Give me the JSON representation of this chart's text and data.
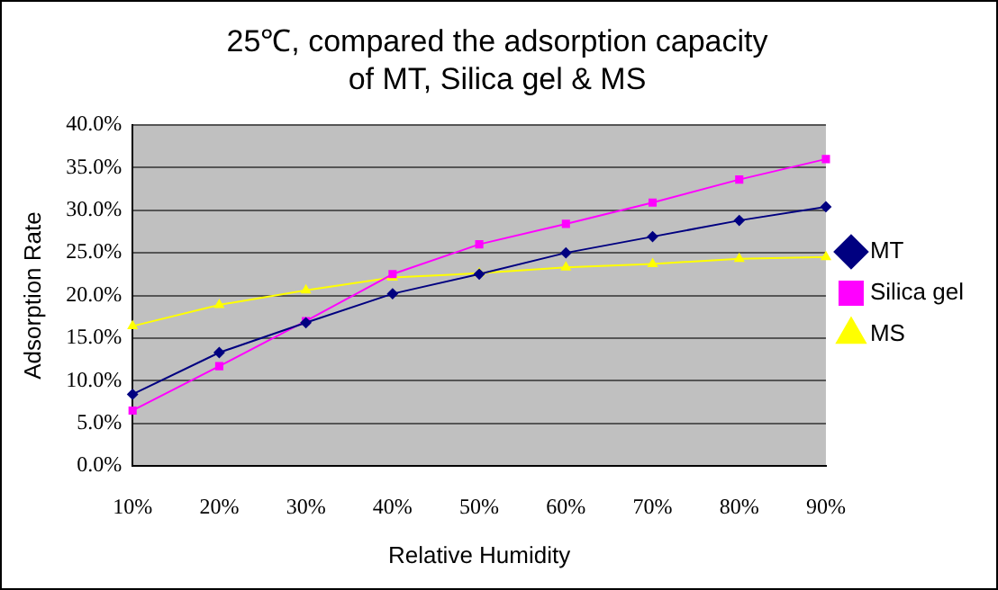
{
  "chart_data": {
    "type": "line",
    "title": "25℃, compared the adsorption capacity of MT, Silica gel & MS",
    "xlabel": "Relative Humidity",
    "ylabel": "Adsorption Rate",
    "categories": [
      "10%",
      "20%",
      "30%",
      "40%",
      "50%",
      "60%",
      "70%",
      "80%",
      "90%"
    ],
    "series": [
      {
        "name": "MT",
        "color": "#000080",
        "marker": "diamond",
        "values": [
          8.4,
          13.3,
          16.8,
          20.2,
          22.5,
          25.0,
          26.9,
          28.8,
          30.4
        ]
      },
      {
        "name": "Silica gel",
        "color": "#ff00ff",
        "marker": "square",
        "values": [
          6.5,
          11.7,
          17.0,
          22.5,
          26.0,
          28.4,
          30.9,
          33.6,
          36.0
        ]
      },
      {
        "name": "MS",
        "color": "#ffff00",
        "marker": "triangle",
        "values": [
          16.4,
          18.9,
          20.6,
          22.1,
          22.6,
          23.3,
          23.7,
          24.3,
          24.5
        ]
      }
    ],
    "ylim": [
      0,
      40
    ],
    "yticks": [
      {
        "value": 0,
        "label": "0.0%"
      },
      {
        "value": 5,
        "label": "5.0%"
      },
      {
        "value": 10,
        "label": "10.0%"
      },
      {
        "value": 15,
        "label": "15.0%"
      },
      {
        "value": 20,
        "label": "20.0%"
      },
      {
        "value": 25,
        "label": "25.0%"
      },
      {
        "value": 30,
        "label": "30.0%"
      },
      {
        "value": 35,
        "label": "35.0%"
      },
      {
        "value": 40,
        "label": "40.0%"
      }
    ],
    "grid": "y",
    "legend": "right"
  }
}
